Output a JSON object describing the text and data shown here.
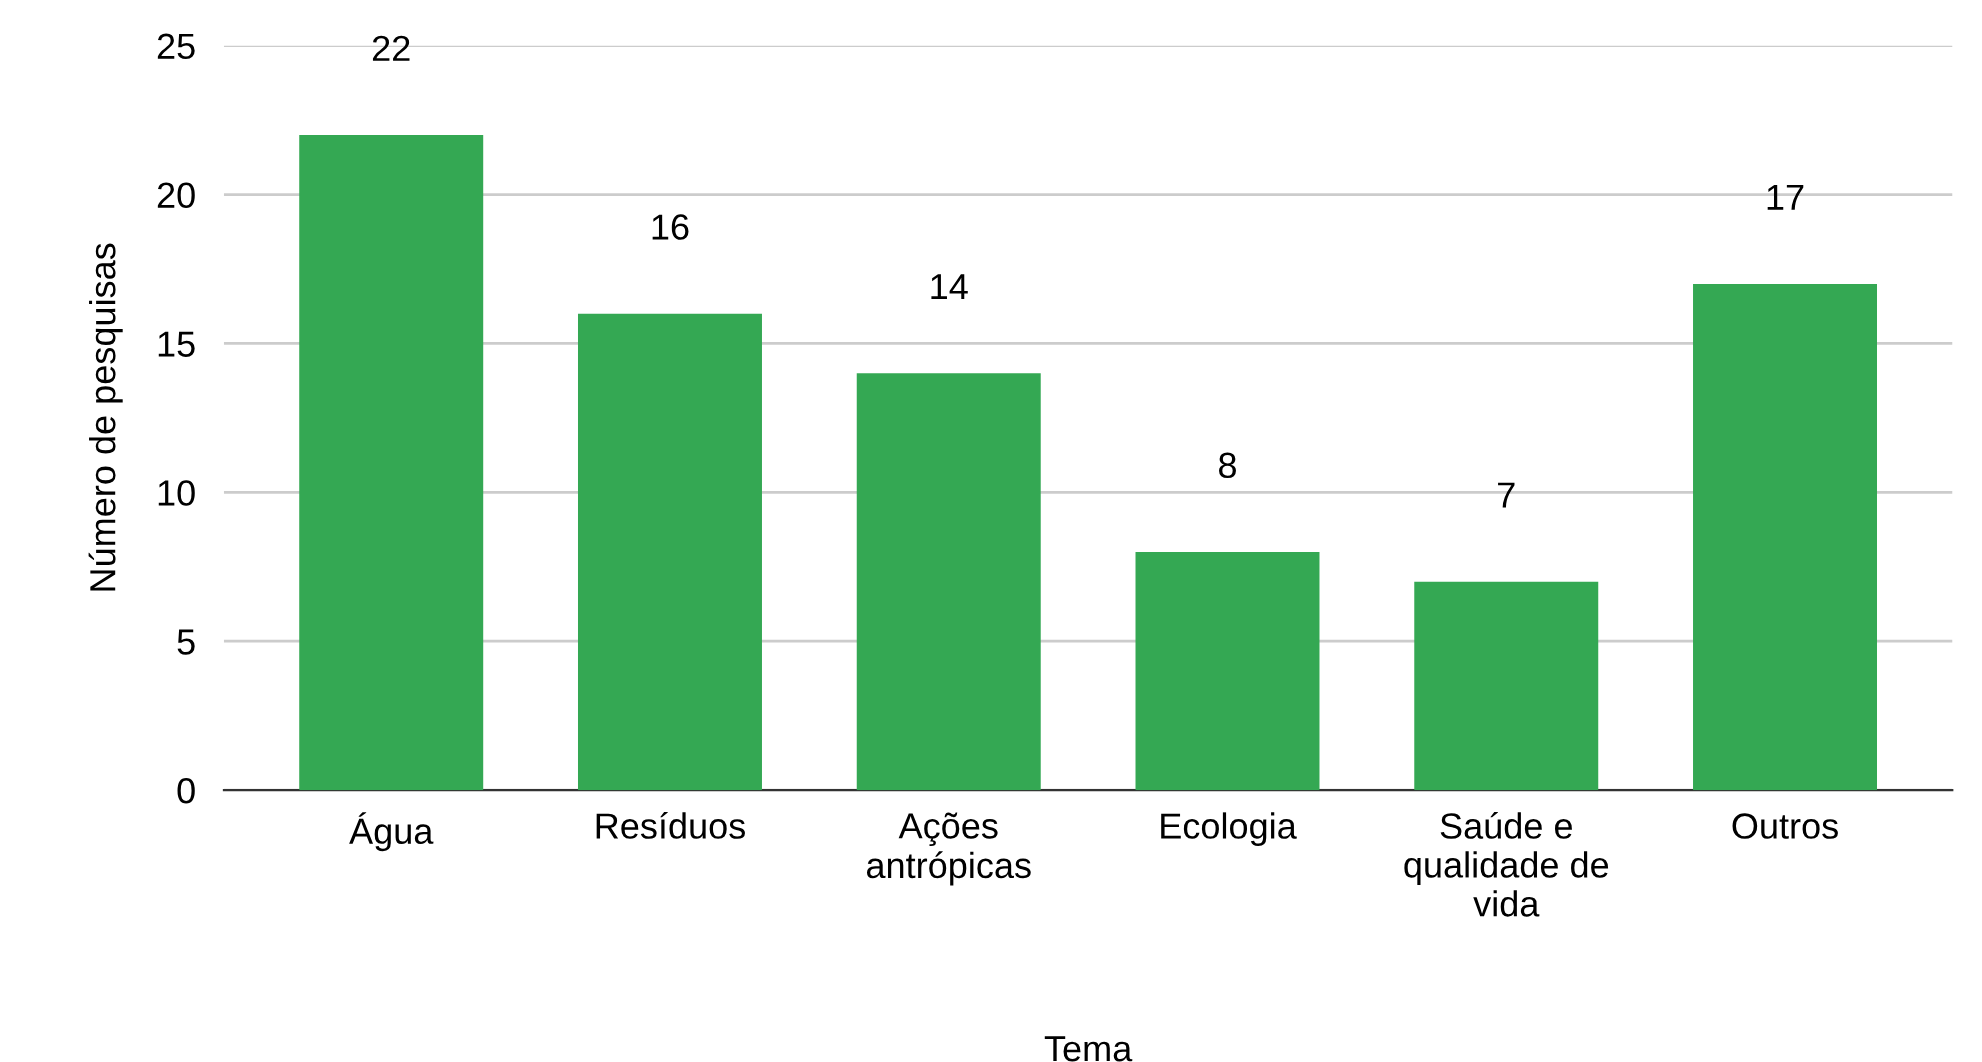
{
  "chart_data": {
    "type": "bar",
    "xlabel": "Tema",
    "ylabel": "Número de pesquisas",
    "categories": [
      "Água",
      "Resíduos",
      "Ações antrópicas",
      "Ecologia",
      "Saúde e qualidade de vida",
      "Outros"
    ],
    "values": [
      22,
      16,
      14,
      8,
      7,
      17
    ],
    "color": "#34a853",
    "ylim": [
      0,
      25
    ],
    "yticks": [
      0,
      5,
      10,
      15,
      20,
      25
    ],
    "grid": "y",
    "data_labels": true,
    "legend": false
  }
}
